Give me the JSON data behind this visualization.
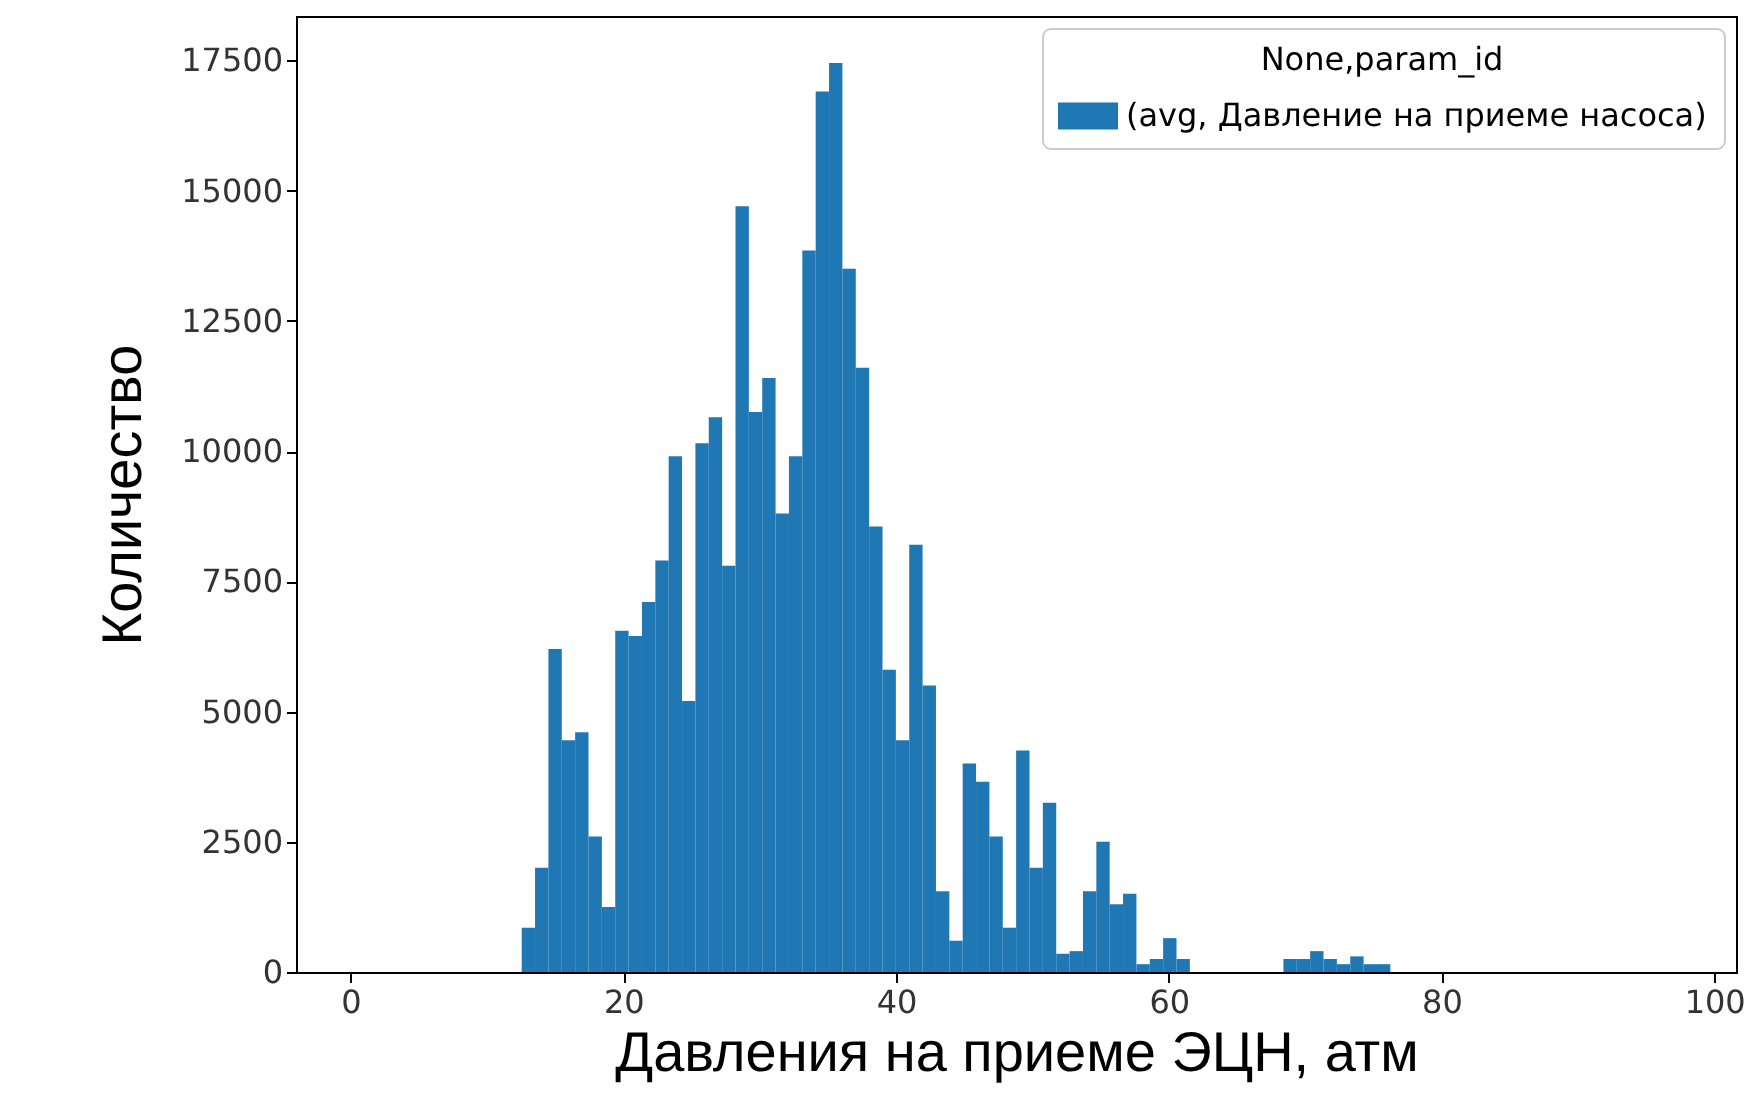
{
  "chart_data": {
    "type": "histogram",
    "xlabel": "Давления на приеме ЭЦН, атм",
    "ylabel": "Количество",
    "legend_title": "None,param_id",
    "legend": "top right",
    "bins": [
      12.55,
      13.53,
      14.51,
      15.49,
      16.47,
      17.45,
      18.43,
      19.41,
      20.39,
      21.37,
      22.35,
      23.33,
      24.31,
      25.29,
      26.27,
      27.25,
      28.23,
      29.21,
      30.19,
      31.17,
      32.15,
      33.13,
      34.11,
      35.09,
      36.07,
      37.05,
      38.03,
      39.01,
      39.99,
      40.97,
      41.95,
      42.93,
      43.91,
      44.89,
      45.87,
      46.85,
      47.83,
      48.81,
      49.79,
      50.77,
      51.75,
      52.73,
      53.71,
      54.69,
      55.67,
      56.65,
      57.63,
      58.61,
      59.59,
      60.57,
      61.55,
      62.53,
      63.51,
      64.49,
      65.47,
      66.45,
      67.43,
      68.41,
      69.39,
      70.37,
      71.35,
      72.33,
      73.31,
      74.29,
      75.27,
      76.25
    ],
    "series": [
      {
        "name": "(avg, Давление на приеме насоса)",
        "color": "#1f77b4",
        "values": [
          850,
          2000,
          6200,
          4450,
          4600,
          2600,
          1250,
          6550,
          6450,
          7100,
          7900,
          9900,
          5200,
          10150,
          10650,
          7800,
          14700,
          10750,
          11400,
          8800,
          9900,
          13850,
          16900,
          17450,
          13500,
          11600,
          8550,
          5800,
          4450,
          8200,
          5500,
          1550,
          600,
          4000,
          3650,
          2600,
          850,
          4250,
          2000,
          3250,
          350,
          400,
          1550,
          2500,
          1300,
          1500,
          150,
          250,
          650,
          250,
          0,
          0,
          0,
          0,
          0,
          0,
          0,
          250,
          250,
          400,
          250,
          150,
          300,
          150,
          150
        ]
      }
    ],
    "xlim": [
      -4,
      101.6
    ],
    "xticks": [
      0,
      20,
      40,
      60,
      80,
      100
    ],
    "ylim": [
      0,
      18350
    ],
    "yticks": [
      0,
      2500,
      5000,
      7500,
      10000,
      12500,
      15000,
      17500
    ]
  }
}
